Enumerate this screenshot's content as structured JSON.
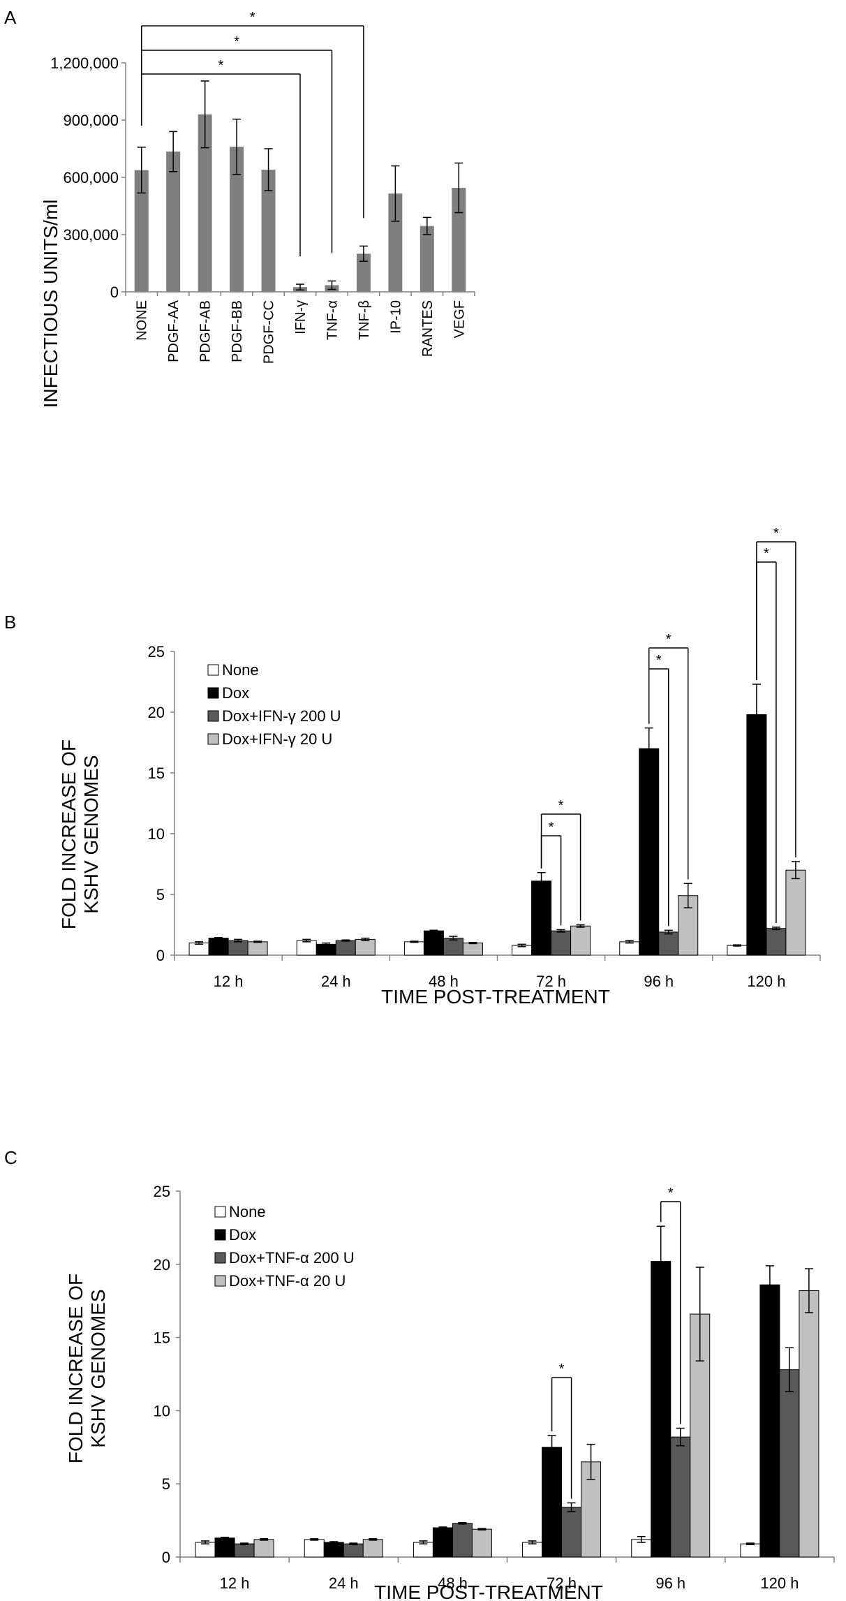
{
  "colors": {
    "axis": "#808080",
    "a_bar": "#7f7f7f",
    "none": "#ffffff",
    "dox": "#000000",
    "treat200": "#595959",
    "treat20": "#c0c0c0",
    "bar_edge": "#000000"
  },
  "chart_data": [
    {
      "panel": "A",
      "type": "bar",
      "categories": [
        "NONE",
        "PDGF-AA",
        "PDGF-AB",
        "PDGF-BB",
        "PDGF-CC",
        "IFN-γ",
        "TNF-α",
        "TNF-β",
        "IP-10",
        "RANTES",
        "VEGF"
      ],
      "values": [
        638000,
        735000,
        930000,
        760000,
        640000,
        25000,
        35000,
        200000,
        515000,
        345000,
        545000
      ],
      "errors": [
        120000,
        105000,
        175000,
        145000,
        110000,
        15000,
        22000,
        40000,
        145000,
        45000,
        130000
      ],
      "ylabel": "INFECTIOUS UNITS/ml",
      "xlabel": "",
      "ylim": [
        0,
        1200000
      ],
      "yticks": [
        0,
        300000,
        600000,
        900000,
        1200000
      ],
      "ytick_labels": [
        "0",
        "300,000",
        "600,000",
        "900,000",
        "1,200,000"
      ],
      "significance": [
        {
          "from": "NONE",
          "to": "TNF-β",
          "label": "*"
        },
        {
          "from": "NONE",
          "to": "TNF-α",
          "label": "*"
        },
        {
          "from": "NONE",
          "to": "IFN-γ",
          "label": "*"
        }
      ]
    },
    {
      "panel": "B",
      "type": "bar",
      "categories": [
        "12 h",
        "24 h",
        "48 h",
        "72 h",
        "96 h",
        "120 h"
      ],
      "series": [
        {
          "name": "None",
          "values": [
            1.0,
            1.2,
            1.1,
            0.8,
            1.1,
            0.8
          ],
          "errors": [
            0.1,
            0.1,
            0.05,
            0.1,
            0.1,
            0.05
          ]
        },
        {
          "name": "Dox",
          "values": [
            1.4,
            0.9,
            2.0,
            6.1,
            17.0,
            19.8
          ],
          "errors": [
            0.05,
            0.1,
            0.05,
            0.7,
            1.7,
            2.5
          ]
        },
        {
          "name": "Dox+IFN-γ 200 U",
          "values": [
            1.2,
            1.2,
            1.4,
            2.0,
            1.9,
            2.2
          ],
          "errors": [
            0.1,
            0.05,
            0.15,
            0.1,
            0.15,
            0.1
          ]
        },
        {
          "name": "Dox+IFN-γ 20 U",
          "values": [
            1.1,
            1.3,
            1.0,
            2.4,
            4.9,
            7.0
          ],
          "errors": [
            0.05,
            0.1,
            0.05,
            0.1,
            1.0,
            0.7
          ]
        }
      ],
      "ylabel_lines": [
        "FOLD INCREASE OF",
        "KSHV GENOMES"
      ],
      "xlabel": "TIME POST-TREATMENT",
      "ylim": [
        0,
        25
      ],
      "yticks": [
        0,
        5,
        10,
        15,
        20,
        25
      ],
      "ytick_labels": [
        "0",
        "5",
        "10",
        "15",
        "20",
        "25"
      ],
      "legend_position": "top-left",
      "significance": [
        {
          "group": 3,
          "from": 1,
          "to": 2,
          "label": "*"
        },
        {
          "group": 3,
          "from": 1,
          "to": 3,
          "label": "*"
        },
        {
          "group": 4,
          "from": 1,
          "to": 2,
          "label": "*"
        },
        {
          "group": 4,
          "from": 1,
          "to": 3,
          "label": "*"
        },
        {
          "group": 5,
          "from": 1,
          "to": 2,
          "label": "*"
        },
        {
          "group": 5,
          "from": 1,
          "to": 3,
          "label": "*"
        }
      ]
    },
    {
      "panel": "C",
      "type": "bar",
      "categories": [
        "12 h",
        "24 h",
        "48 h",
        "72 h",
        "96 h",
        "120 h"
      ],
      "series": [
        {
          "name": "None",
          "values": [
            1.0,
            1.2,
            1.0,
            1.0,
            1.2,
            0.9
          ],
          "errors": [
            0.1,
            0.05,
            0.1,
            0.1,
            0.2,
            0.05
          ]
        },
        {
          "name": "Dox",
          "values": [
            1.3,
            1.0,
            2.0,
            7.5,
            20.2,
            18.6
          ],
          "errors": [
            0.05,
            0.05,
            0.05,
            0.8,
            2.4,
            1.3
          ]
        },
        {
          "name": "Dox+TNF-α 200 U",
          "values": [
            0.9,
            0.9,
            2.3,
            3.4,
            8.2,
            12.8
          ],
          "errors": [
            0.05,
            0.05,
            0.05,
            0.3,
            0.6,
            1.5
          ]
        },
        {
          "name": "Dox+TNF-α 20 U",
          "values": [
            1.2,
            1.2,
            1.9,
            6.5,
            16.6,
            18.2
          ],
          "errors": [
            0.05,
            0.05,
            0.05,
            1.2,
            3.2,
            1.5
          ]
        }
      ],
      "ylabel_lines": [
        "FOLD INCREASE OF",
        "KSHV GENOMES"
      ],
      "xlabel": "TIME POST-TREATMENT",
      "ylim": [
        0,
        25
      ],
      "yticks": [
        0,
        5,
        10,
        15,
        20,
        25
      ],
      "ytick_labels": [
        "0",
        "5",
        "10",
        "15",
        "20",
        "25"
      ],
      "legend_position": "top-left",
      "significance": [
        {
          "group": 3,
          "from": 1,
          "to": 2,
          "label": "*"
        },
        {
          "group": 4,
          "from": 1,
          "to": 2,
          "label": "*"
        }
      ]
    }
  ]
}
